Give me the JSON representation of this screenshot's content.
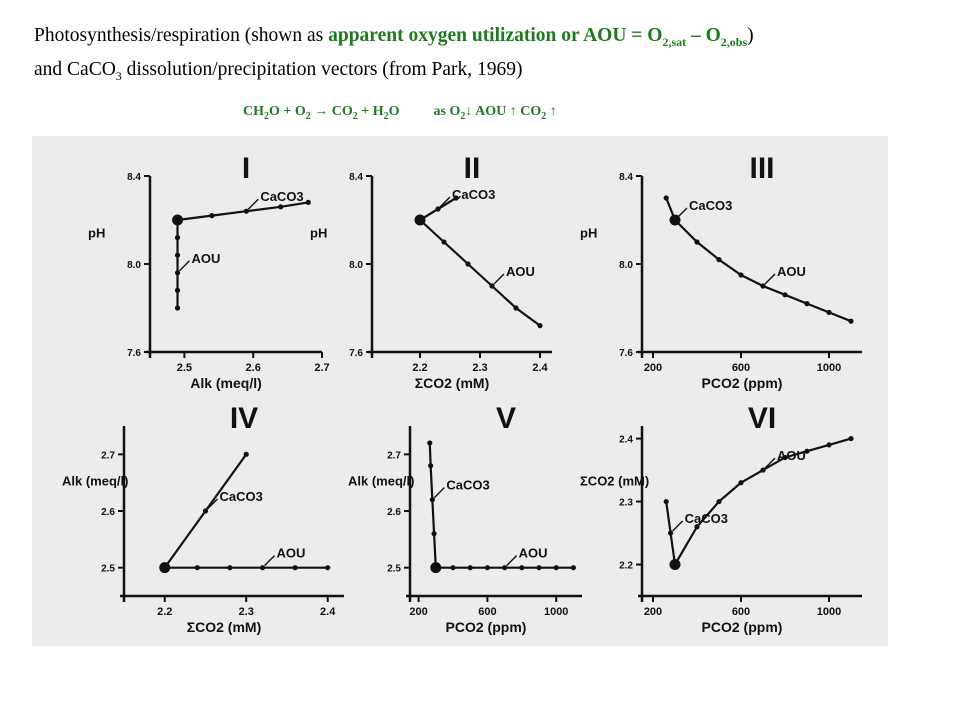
{
  "title": {
    "line1_a": "Photosynthesis/respiration (shown as ",
    "line1_b": "apparent oxygen utilization or AOU = O",
    "line1_sub1": "2,sat",
    "line1_c": " – O",
    "line1_sub2": "2,obs",
    "line1_d": ")",
    "line2_a": "and CaCO",
    "line2_sub": "3",
    "line2_b": " dissolution/precipitation vectors (from Park, 1969)"
  },
  "equation": {
    "p1": "CH",
    "s1": "2",
    "p2": "O + O",
    "s2": "2",
    "p3": " → CO",
    "s3": "2",
    "p4": " + H",
    "s4": "2",
    "p5": "O",
    "q1": "as O",
    "qs1": "2",
    "q2": "↓ AOU ↑ CO",
    "qs2": "2",
    "q3": " ↑"
  },
  "colors": {
    "accent": "#1f7a1f",
    "scan_bg": "#ececec",
    "ink": "#111111"
  },
  "chart_data": [
    {
      "type": "line",
      "panel": "I",
      "xlabel": "Alk (meq/l)",
      "ylabel": "pH",
      "xlim": [
        2.45,
        2.7
      ],
      "ylim": [
        7.6,
        8.4
      ],
      "xticks": [
        "2.5",
        "2.6",
        "2.7"
      ],
      "yticks": [
        "8.4",
        "8.0",
        "7.6"
      ],
      "series": [
        {
          "name": "CaCO3",
          "x": [
            2.49,
            2.54,
            2.59,
            2.64,
            2.68
          ],
          "y": [
            8.2,
            8.22,
            8.24,
            8.26,
            8.28
          ]
        },
        {
          "name": "AOU",
          "x": [
            2.49,
            2.49,
            2.49,
            2.49,
            2.49,
            2.49
          ],
          "y": [
            8.2,
            8.12,
            8.04,
            7.96,
            7.88,
            7.8
          ]
        }
      ],
      "origin": {
        "x": 2.49,
        "y": 8.2
      }
    },
    {
      "type": "line",
      "panel": "II",
      "xlabel": "ΣCO2 (mM)",
      "ylabel": "pH",
      "xlim": [
        2.12,
        2.42
      ],
      "ylim": [
        7.6,
        8.4
      ],
      "xticks": [
        "2.2",
        "2.3",
        "2.4"
      ],
      "yticks": [
        "8.4",
        "8.0",
        "7.6"
      ],
      "series": [
        {
          "name": "CaCO3",
          "x": [
            2.2,
            2.23,
            2.26
          ],
          "y": [
            8.2,
            8.25,
            8.3
          ]
        },
        {
          "name": "AOU",
          "x": [
            2.2,
            2.24,
            2.28,
            2.32,
            2.36,
            2.4
          ],
          "y": [
            8.2,
            8.1,
            8.0,
            7.9,
            7.8,
            7.72
          ]
        }
      ],
      "origin": {
        "x": 2.2,
        "y": 8.2
      }
    },
    {
      "type": "line",
      "panel": "III",
      "xlabel": "PCO2 (ppm)",
      "ylabel": "pH",
      "xlim": [
        150,
        1150
      ],
      "ylim": [
        7.6,
        8.4
      ],
      "xticks": [
        "200",
        "600",
        "1000"
      ],
      "yticks": [
        "8.4",
        "8.0",
        "7.6"
      ],
      "series": [
        {
          "name": "CaCO3",
          "x": [
            260,
            300
          ],
          "y": [
            8.3,
            8.2
          ]
        },
        {
          "name": "AOU",
          "x": [
            300,
            400,
            500,
            600,
            700,
            800,
            900,
            1000,
            1100
          ],
          "y": [
            8.2,
            8.1,
            8.02,
            7.95,
            7.9,
            7.86,
            7.82,
            7.78,
            7.74
          ]
        }
      ],
      "origin": {
        "x": 300,
        "y": 8.2
      }
    },
    {
      "type": "line",
      "panel": "IV",
      "xlabel": "ΣCO2 (mM)",
      "ylabel": "Alk (meq/l)",
      "xlim": [
        2.15,
        2.42
      ],
      "ylim": [
        2.45,
        2.75
      ],
      "xticks": [
        "2.2",
        "2.3",
        "2.4"
      ],
      "yticks": [
        "2.7",
        "2.6",
        "2.5"
      ],
      "series": [
        {
          "name": "CaCO3",
          "x": [
            2.2,
            2.25,
            2.3
          ],
          "y": [
            2.5,
            2.6,
            2.7
          ]
        },
        {
          "name": "AOU",
          "x": [
            2.2,
            2.24,
            2.28,
            2.32,
            2.36,
            2.4
          ],
          "y": [
            2.5,
            2.5,
            2.5,
            2.5,
            2.5,
            2.5
          ]
        }
      ],
      "origin": {
        "x": 2.2,
        "y": 2.5
      }
    },
    {
      "type": "line",
      "panel": "V",
      "xlabel": "PCO2 (ppm)",
      "ylabel": "Alk (meq/l)",
      "xlim": [
        150,
        1150
      ],
      "ylim": [
        2.45,
        2.75
      ],
      "xticks": [
        "200",
        "600",
        "1000"
      ],
      "yticks": [
        "2.7",
        "2.6",
        "2.5"
      ],
      "series": [
        {
          "name": "CaCO3",
          "x": [
            300,
            290,
            280,
            270,
            265
          ],
          "y": [
            2.5,
            2.56,
            2.62,
            2.68,
            2.72
          ]
        },
        {
          "name": "AOU",
          "x": [
            300,
            400,
            500,
            600,
            700,
            800,
            900,
            1000,
            1100
          ],
          "y": [
            2.5,
            2.5,
            2.5,
            2.5,
            2.5,
            2.5,
            2.5,
            2.5,
            2.5
          ]
        }
      ],
      "origin": {
        "x": 300,
        "y": 2.5
      }
    },
    {
      "type": "line",
      "panel": "VI",
      "xlabel": "PCO2 (ppm)",
      "ylabel": "ΣCO2 (mM)",
      "xlim": [
        150,
        1150
      ],
      "ylim": [
        2.15,
        2.42
      ],
      "xticks": [
        "200",
        "600",
        "1000"
      ],
      "yticks": [
        "2.4",
        "2.3",
        "2.2"
      ],
      "series": [
        {
          "name": "CaCO3",
          "x": [
            300,
            280,
            260
          ],
          "y": [
            2.2,
            2.25,
            2.3
          ]
        },
        {
          "name": "AOU",
          "x": [
            300,
            400,
            500,
            600,
            700,
            800,
            900,
            1000,
            1100
          ],
          "y": [
            2.2,
            2.26,
            2.3,
            2.33,
            2.35,
            2.37,
            2.38,
            2.39,
            2.4
          ]
        }
      ],
      "origin": {
        "x": 300,
        "y": 2.2
      }
    }
  ]
}
